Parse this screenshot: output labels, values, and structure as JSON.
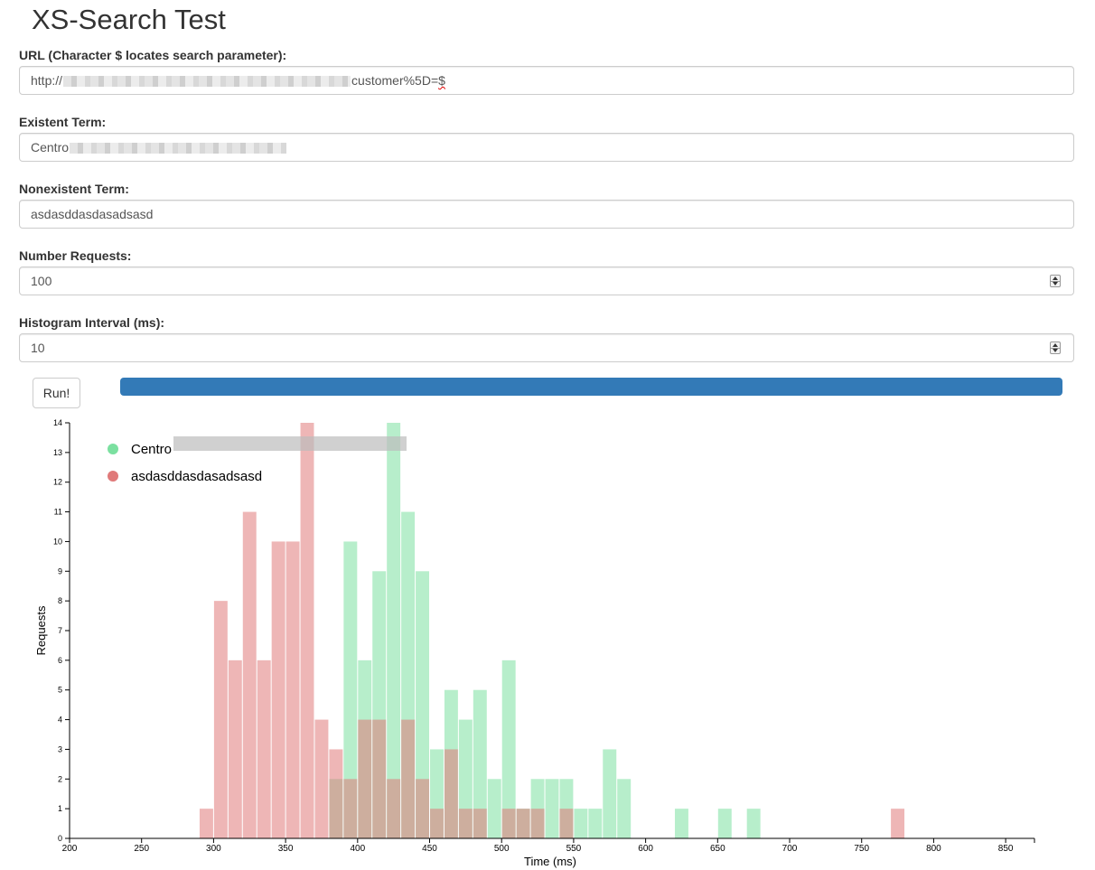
{
  "page_title": "XS-Search Test",
  "form": {
    "url": {
      "label": "URL (Character $ locates search parameter):",
      "value_prefix": "http://",
      "value_suffix": "customer%5D=",
      "value_marker": "$"
    },
    "existent": {
      "label": "Existent Term:",
      "value": "Centro"
    },
    "nonexistent": {
      "label": "Nonexistent Term:",
      "value": "asdasddasdasadsasd"
    },
    "num_requests": {
      "label": "Number Requests:",
      "value": "100"
    },
    "interval": {
      "label": "Histogram Interval (ms):",
      "value": "10"
    }
  },
  "run_button": {
    "label": "Run!"
  },
  "progress": {
    "percent": 100,
    "color": "#337ab7"
  },
  "chart_data": {
    "type": "bar",
    "xlabel": "Time (ms)",
    "ylabel": "Requests",
    "xlim": [
      200,
      870
    ],
    "ylim": [
      0,
      14
    ],
    "x_ticks": [
      200,
      250,
      300,
      350,
      400,
      450,
      500,
      550,
      600,
      650,
      700,
      750,
      800,
      850
    ],
    "y_ticks": [
      0,
      1,
      2,
      3,
      4,
      5,
      6,
      7,
      8,
      9,
      10,
      11,
      12,
      13,
      14
    ],
    "bin_width": 10,
    "legend_position": "top-left",
    "series": [
      {
        "name": "Centro",
        "color": "#7be0a0",
        "bins": [
          [
            380,
            2
          ],
          [
            390,
            10
          ],
          [
            400,
            6
          ],
          [
            410,
            9
          ],
          [
            420,
            14
          ],
          [
            430,
            11
          ],
          [
            440,
            9
          ],
          [
            450,
            3
          ],
          [
            460,
            5
          ],
          [
            470,
            4
          ],
          [
            480,
            5
          ],
          [
            490,
            2
          ],
          [
            500,
            6
          ],
          [
            510,
            1
          ],
          [
            520,
            2
          ],
          [
            530,
            2
          ],
          [
            540,
            2
          ],
          [
            550,
            1
          ],
          [
            560,
            1
          ],
          [
            570,
            3
          ],
          [
            580,
            2
          ],
          [
            620,
            1
          ],
          [
            650,
            1
          ],
          [
            670,
            1
          ]
        ]
      },
      {
        "name": "asdasddasdasadsasd",
        "color": "#e07a7a",
        "bins": [
          [
            290,
            1
          ],
          [
            300,
            8
          ],
          [
            310,
            6
          ],
          [
            320,
            11
          ],
          [
            330,
            6
          ],
          [
            340,
            10
          ],
          [
            350,
            10
          ],
          [
            360,
            14
          ],
          [
            370,
            4
          ],
          [
            380,
            3
          ],
          [
            390,
            2
          ],
          [
            400,
            4
          ],
          [
            410,
            4
          ],
          [
            420,
            2
          ],
          [
            430,
            4
          ],
          [
            440,
            2
          ],
          [
            450,
            1
          ],
          [
            460,
            3
          ],
          [
            470,
            1
          ],
          [
            480,
            1
          ],
          [
            500,
            1
          ],
          [
            510,
            1
          ],
          [
            520,
            1
          ],
          [
            540,
            1
          ],
          [
            770,
            1
          ]
        ]
      }
    ]
  }
}
